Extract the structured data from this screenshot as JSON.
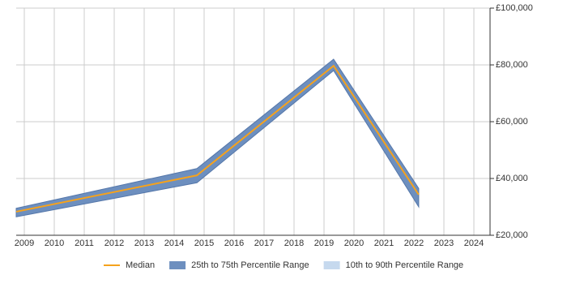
{
  "chart_data": {
    "type": "line",
    "x": [
      2008.73,
      2014.76,
      2019.32,
      2022.16
    ],
    "series": [
      {
        "name": "Median",
        "color": "#f5a21d",
        "values": [
          28300,
          41100,
          79700,
          34300
        ]
      },
      {
        "name": "25th to 75th Percentile Range",
        "color": "#6d8fbf",
        "low": [
          26500,
          38500,
          78000,
          30000
        ],
        "high": [
          29500,
          43500,
          82000,
          36500
        ]
      },
      {
        "name": "10th to 90th Percentile Range",
        "color": "#c6d9ee"
      }
    ],
    "xlim": [
      2008.73,
      2024.54
    ],
    "xticks": [
      2009,
      2010,
      2011,
      2012,
      2013,
      2014,
      2015,
      2016,
      2017,
      2018,
      2019,
      2020,
      2021,
      2022,
      2023,
      2024
    ],
    "ylim": [
      20000,
      100000
    ],
    "yticks": [
      {
        "value": 20000,
        "label": "£20,000"
      },
      {
        "value": 40000,
        "label": "£40,000"
      },
      {
        "value": 60000,
        "label": "£60,000"
      },
      {
        "value": 80000,
        "label": "£80,000"
      },
      {
        "value": 100000,
        "label": "£100,000"
      }
    ],
    "grid": true
  }
}
